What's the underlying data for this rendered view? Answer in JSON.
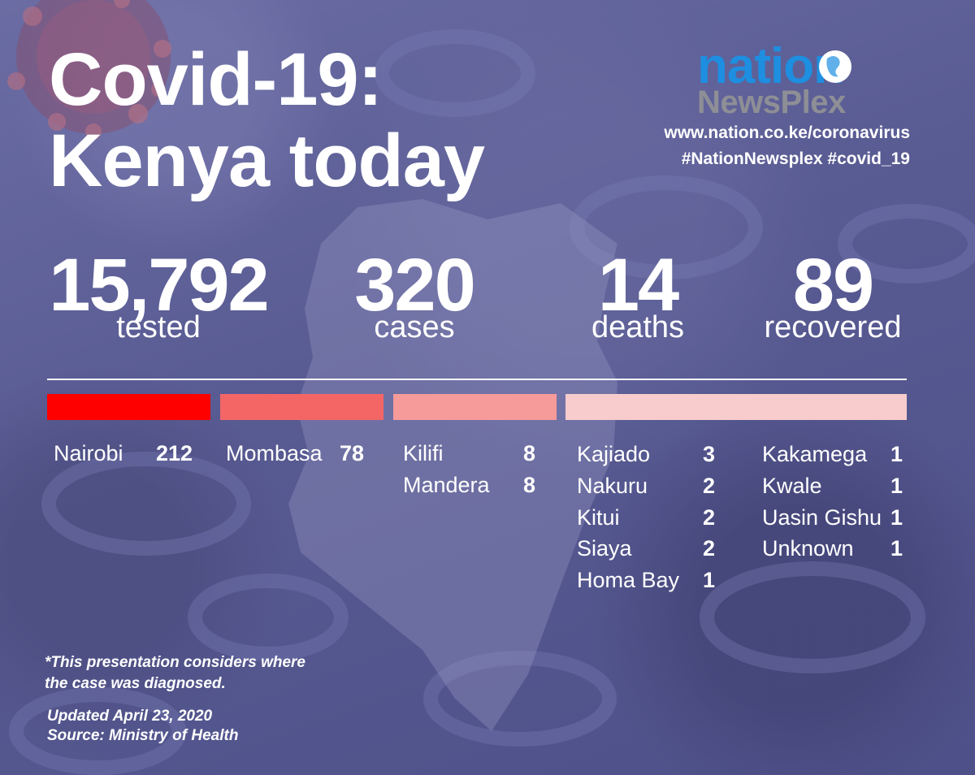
{
  "title_line1": "Covid-19:",
  "title_line2": "Kenya today",
  "brand": {
    "name": "nation",
    "subname": "NewsPlex",
    "accent": "#1e8ee0",
    "sub_color": "#8e8e96"
  },
  "website": "www.nation.co.ke/coronavirus",
  "hashtags": "#NationNewsplex #covid_19",
  "stats": {
    "tested": {
      "value": "15,792",
      "label": "tested"
    },
    "cases": {
      "value": "320",
      "label": "cases"
    },
    "deaths": {
      "value": "14",
      "label": "deaths"
    },
    "recovered": {
      "value": "89",
      "label": "recovered"
    }
  },
  "colors": {
    "band1": "#ff0000",
    "band2": "#f46666",
    "band3": "#f79a9a",
    "band4": "#f8cccc",
    "background": "#5b5d94"
  },
  "counties": {
    "group1": [
      {
        "name": "Nairobi",
        "value": "212"
      }
    ],
    "group2": [
      {
        "name": "Mombasa",
        "value": "78"
      }
    ],
    "group3": [
      {
        "name": "Kilifi",
        "value": "8"
      },
      {
        "name": "Mandera",
        "value": "8"
      }
    ],
    "group4a": [
      {
        "name": "Kajiado",
        "value": "3"
      },
      {
        "name": "Nakuru",
        "value": "2"
      },
      {
        "name": "Kitui",
        "value": "2"
      },
      {
        "name": "Siaya",
        "value": "2"
      },
      {
        "name": "Homa Bay",
        "value": "1"
      }
    ],
    "group4b": [
      {
        "name": "Kakamega",
        "value": "1"
      },
      {
        "name": "Kwale",
        "value": "1"
      },
      {
        "name": "Uasin Gishu",
        "value": "1"
      },
      {
        "name": "Unknown",
        "value": "1"
      }
    ]
  },
  "note_line1": "*This presentation considers where",
  "note_line2": "the case was diagnosed.",
  "updated": "Updated April 23, 2020",
  "source": "Source: Ministry of Health"
}
